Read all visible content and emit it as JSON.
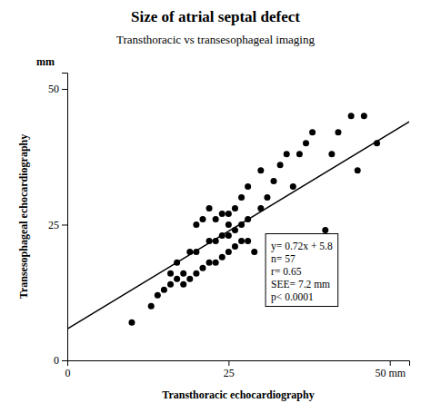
{
  "chart_data": {
    "type": "scatter",
    "title": "Size of atrial septal defect",
    "subtitle": "Transthoracic vs transesophageal imaging",
    "xlabel": "Transthoracic echocardiography",
    "ylabel": "Transesophageal echocardiography",
    "xlim": [
      0,
      53
    ],
    "ylim": [
      0,
      53
    ],
    "xticks": [
      0,
      25,
      {
        "value": 50,
        "label": "50 mm"
      }
    ],
    "yticks": [
      0,
      25,
      50
    ],
    "grid": false,
    "series": [
      {
        "type": "scatter",
        "color": "#000000",
        "marker": "circle",
        "x": [
          10,
          13,
          14,
          15,
          16,
          16,
          17,
          17,
          18,
          18,
          19,
          19,
          20,
          20,
          20,
          21,
          21,
          22,
          22,
          22,
          23,
          23,
          23,
          24,
          24,
          24,
          25,
          25,
          25,
          25,
          26,
          26,
          26,
          27,
          27,
          27,
          28,
          28,
          28,
          29,
          30,
          30,
          31,
          32,
          33,
          34,
          35,
          36,
          37,
          38,
          40,
          41,
          42,
          44,
          45,
          46,
          48
        ],
        "values": [
          7,
          10,
          12,
          13,
          14,
          16,
          15,
          18,
          14,
          16,
          15,
          20,
          16,
          20,
          25,
          17,
          26,
          18,
          22,
          28,
          18,
          22,
          26,
          19,
          23,
          27,
          20,
          23,
          25,
          27,
          21,
          24,
          28,
          22,
          25,
          30,
          22,
          26,
          32,
          20,
          28,
          35,
          30,
          33,
          36,
          38,
          32,
          38,
          40,
          42,
          24,
          38,
          42,
          45,
          35,
          45,
          40
        ]
      },
      {
        "type": "line",
        "color": "#000000",
        "line_style": "solid",
        "x": [
          0,
          53
        ],
        "values": [
          5.8,
          43.96
        ]
      }
    ],
    "annotations": [
      {
        "lines": [
          "mm"
        ]
      },
      {
        "lines": [
          "y= 0.72x + 5.8",
          "n= 57",
          "r= 0.65",
          "SEE= 7.2 mm",
          "p< 0.0001"
        ]
      }
    ]
  }
}
